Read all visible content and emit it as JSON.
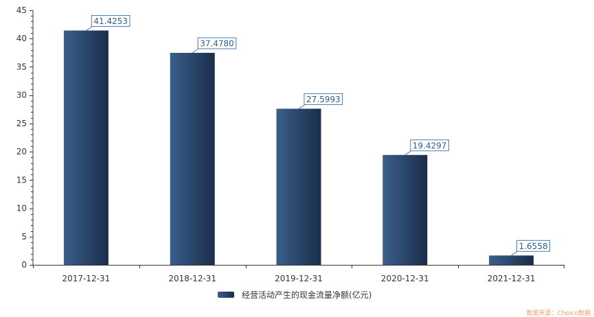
{
  "chart_data": {
    "type": "bar",
    "categories": [
      "2017-12-31",
      "2018-12-31",
      "2019-12-31",
      "2020-12-31",
      "2021-12-31"
    ],
    "series": [
      {
        "name": "经营活动产生的现金流量净额(亿元)",
        "values": [
          41.4253,
          37.478,
          27.5993,
          19.4297,
          1.6558
        ],
        "labels": [
          "41.4253",
          "37.4780",
          "27.5993",
          "19.4297",
          "1.6558"
        ]
      }
    ],
    "ylim": [
      0,
      45
    ],
    "yticks": [
      0,
      5,
      10,
      15,
      20,
      25,
      30,
      35,
      40,
      45
    ],
    "grid": false,
    "legend": "bottom-center",
    "colors": {
      "bar_light": "#3a5f8c",
      "bar_dark": "#1b2d4a",
      "label_text": "#2f5c8a",
      "label_border": "#4a7bb0",
      "axis": "#333333",
      "source_text": "#f2a36b"
    }
  },
  "source_note": "数据来源：Choice数据"
}
